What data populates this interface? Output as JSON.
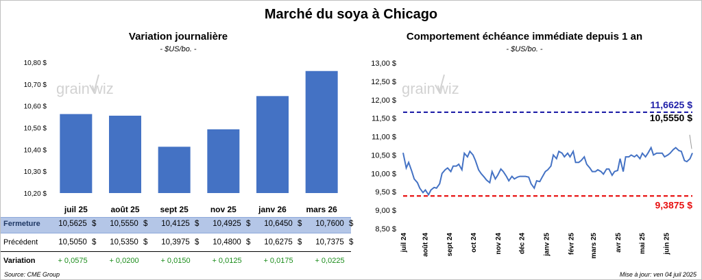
{
  "title": "Marché du soya à Chicago",
  "left": {
    "subtitle": "Variation journalière",
    "unit": "- $US/bo. -"
  },
  "right": {
    "subtitle": "Comportement échéance immédiate depuis 1 an",
    "unit": "- $US/bo. -"
  },
  "watermark": {
    "left_text": "grain",
    "right_text": "wiz"
  },
  "table": {
    "rows": [
      {
        "label": "Fermeture",
        "values": [
          "10,5625",
          "10,5550",
          "10,4125",
          "10,4925",
          "10,6450",
          "10,7600"
        ],
        "unit": "$"
      },
      {
        "label": "Précédent",
        "values": [
          "10,5050",
          "10,5350",
          "10,3975",
          "10,4800",
          "10,6275",
          "10,7375"
        ],
        "unit": "$"
      },
      {
        "label": "Variation",
        "values": [
          "+ 0,0575",
          "+ 0,0200",
          "+ 0,0150",
          "+ 0,0125",
          "+ 0,0175",
          "+ 0,0225"
        ],
        "unit": ""
      }
    ]
  },
  "footer": {
    "source": "Source: CME Group",
    "updated": "Mise à jour: ven 04 juil 2025"
  },
  "colors": {
    "bar": "#4472C4",
    "line": "#4472C4",
    "high": "#1F1FA8",
    "low": "#E81010",
    "variation": "#1A8C1A",
    "table_band": "#B4C6E7"
  },
  "chart_data": [
    {
      "type": "bar",
      "categories": [
        "juil 25",
        "août 25",
        "sept 25",
        "nov 25",
        "janv 26",
        "mars 26"
      ],
      "values": [
        10.5625,
        10.555,
        10.4125,
        10.4925,
        10.645,
        10.76
      ],
      "ylim": [
        10.2,
        10.8
      ],
      "yticks": [
        "10,20 $",
        "10,30 $",
        "10,40 $",
        "10,50 $",
        "10,60 $",
        "10,70 $",
        "10,80 $"
      ],
      "grid": false
    },
    {
      "type": "line",
      "ylim": [
        8.5,
        13.0
      ],
      "yticks": [
        "8,50 $",
        "9,00 $",
        "9,50 $",
        "10,00 $",
        "10,50 $",
        "11,00 $",
        "11,50 $",
        "12,00 $",
        "12,50 $",
        "13,00 $"
      ],
      "xticks": [
        "juil 24",
        "août 24",
        "sept 24",
        "oct 24",
        "nov 24",
        "déc 24",
        "janv 25",
        "févr 25",
        "mars 25",
        "avr 25",
        "mai 25",
        "juin 25"
      ],
      "x_start": "2024-07-05",
      "x_end": "2025-07-04",
      "series": [
        {
          "points": [
            [
              "2024-07-05",
              10.56
            ],
            [
              "2024-07-09",
              10.15
            ],
            [
              "2024-07-12",
              10.3
            ],
            [
              "2024-07-16",
              10.05
            ],
            [
              "2024-07-19",
              9.85
            ],
            [
              "2024-07-23",
              9.75
            ],
            [
              "2024-07-26",
              9.6
            ],
            [
              "2024-07-30",
              9.48
            ],
            [
              "2024-08-02",
              9.55
            ],
            [
              "2024-08-06",
              9.42
            ],
            [
              "2024-08-09",
              9.55
            ],
            [
              "2024-08-13",
              9.62
            ],
            [
              "2024-08-16",
              9.6
            ],
            [
              "2024-08-20",
              9.72
            ],
            [
              "2024-08-23",
              10.0
            ],
            [
              "2024-08-27",
              10.1
            ],
            [
              "2024-08-30",
              10.15
            ],
            [
              "2024-09-03",
              10.05
            ],
            [
              "2024-09-06",
              10.2
            ],
            [
              "2024-09-10",
              10.2
            ],
            [
              "2024-09-13",
              10.25
            ],
            [
              "2024-09-17",
              10.1
            ],
            [
              "2024-09-20",
              10.55
            ],
            [
              "2024-09-24",
              10.45
            ],
            [
              "2024-09-27",
              10.6
            ],
            [
              "2024-10-01",
              10.5
            ],
            [
              "2024-10-04",
              10.35
            ],
            [
              "2024-10-08",
              10.1
            ],
            [
              "2024-10-11",
              10.0
            ],
            [
              "2024-10-15",
              9.9
            ],
            [
              "2024-10-18",
              9.82
            ],
            [
              "2024-10-22",
              9.75
            ],
            [
              "2024-10-25",
              10.05
            ],
            [
              "2024-10-29",
              9.85
            ],
            [
              "2024-11-01",
              9.95
            ],
            [
              "2024-11-05",
              10.12
            ],
            [
              "2024-11-08",
              10.05
            ],
            [
              "2024-11-12",
              9.92
            ],
            [
              "2024-11-15",
              9.8
            ],
            [
              "2024-11-19",
              9.92
            ],
            [
              "2024-11-22",
              9.85
            ],
            [
              "2024-11-26",
              9.9
            ],
            [
              "2024-11-29",
              9.92
            ],
            [
              "2024-12-03",
              9.92
            ],
            [
              "2024-12-06",
              9.92
            ],
            [
              "2024-12-10",
              9.9
            ],
            [
              "2024-12-13",
              9.72
            ],
            [
              "2024-12-17",
              9.6
            ],
            [
              "2024-12-20",
              9.8
            ],
            [
              "2024-12-24",
              9.78
            ],
            [
              "2024-12-27",
              9.9
            ],
            [
              "2024-12-31",
              10.05
            ],
            [
              "2025-01-03",
              10.1
            ],
            [
              "2025-01-07",
              10.2
            ],
            [
              "2025-01-10",
              10.5
            ],
            [
              "2025-01-14",
              10.4
            ],
            [
              "2025-01-17",
              10.6
            ],
            [
              "2025-01-21",
              10.55
            ],
            [
              "2025-01-24",
              10.45
            ],
            [
              "2025-01-28",
              10.55
            ],
            [
              "2025-01-31",
              10.45
            ],
            [
              "2025-02-04",
              10.6
            ],
            [
              "2025-02-07",
              10.3
            ],
            [
              "2025-02-11",
              10.3
            ],
            [
              "2025-02-14",
              10.35
            ],
            [
              "2025-02-18",
              10.45
            ],
            [
              "2025-02-21",
              10.25
            ],
            [
              "2025-02-25",
              10.15
            ],
            [
              "2025-02-28",
              10.05
            ],
            [
              "2025-03-04",
              10.05
            ],
            [
              "2025-03-07",
              10.1
            ],
            [
              "2025-03-11",
              10.05
            ],
            [
              "2025-03-14",
              9.98
            ],
            [
              "2025-03-18",
              10.12
            ],
            [
              "2025-03-21",
              10.12
            ],
            [
              "2025-03-25",
              9.95
            ],
            [
              "2025-03-28",
              10.05
            ],
            [
              "2025-04-01",
              10.08
            ],
            [
              "2025-04-04",
              10.4
            ],
            [
              "2025-04-08",
              10.05
            ],
            [
              "2025-04-11",
              10.45
            ],
            [
              "2025-04-15",
              10.45
            ],
            [
              "2025-04-18",
              10.5
            ],
            [
              "2025-04-22",
              10.45
            ],
            [
              "2025-04-25",
              10.5
            ],
            [
              "2025-04-29",
              10.4
            ],
            [
              "2025-05-02",
              10.55
            ],
            [
              "2025-05-06",
              10.45
            ],
            [
              "2025-05-09",
              10.55
            ],
            [
              "2025-05-13",
              10.7
            ],
            [
              "2025-05-16",
              10.5
            ],
            [
              "2025-05-20",
              10.55
            ],
            [
              "2025-05-23",
              10.55
            ],
            [
              "2025-05-27",
              10.55
            ],
            [
              "2025-05-30",
              10.45
            ],
            [
              "2025-06-03",
              10.5
            ],
            [
              "2025-06-06",
              10.55
            ],
            [
              "2025-06-10",
              10.65
            ],
            [
              "2025-06-13",
              10.7
            ],
            [
              "2025-06-17",
              10.62
            ],
            [
              "2025-06-20",
              10.6
            ],
            [
              "2025-06-24",
              10.35
            ],
            [
              "2025-06-27",
              10.32
            ],
            [
              "2025-07-01",
              10.4
            ],
            [
              "2025-07-04",
              10.555
            ]
          ]
        }
      ],
      "reference_lines": [
        {
          "value": 11.6625,
          "label": "11,6625 $",
          "color": "#1F1FA8"
        },
        {
          "value": 9.3875,
          "label": "9,3875 $",
          "color": "#E81010"
        }
      ],
      "last_value_label": "10,5550 $"
    }
  ]
}
